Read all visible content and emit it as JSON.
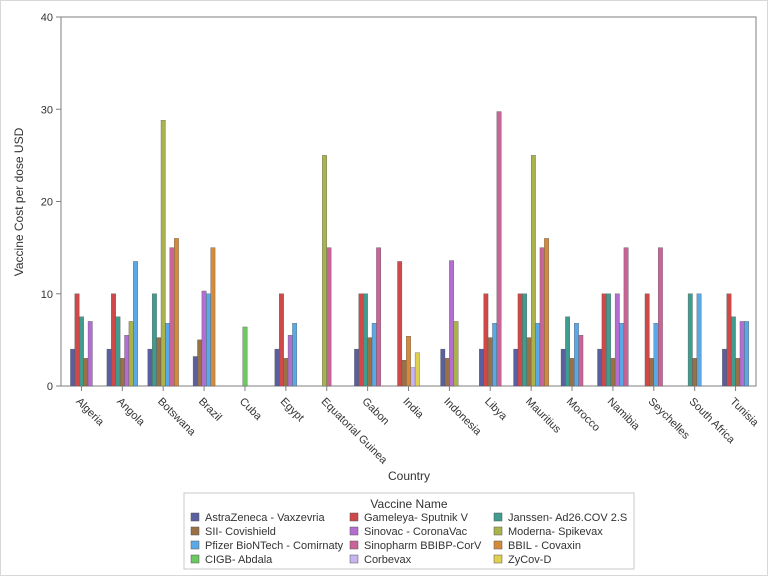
{
  "chart_data": {
    "type": "bar",
    "title": "",
    "xlabel": "Country",
    "ylabel": "Vaccine Cost per dose USD",
    "ylim": [
      0,
      40
    ],
    "yticks": [
      0,
      10,
      20,
      30,
      40
    ],
    "grid": false,
    "legend_position": "bottom",
    "legend_title": "Vaccine Name",
    "categories": [
      "Algeria",
      "Angola",
      "Botswana",
      "Brazil",
      "Cuba",
      "Egypt",
      "Equatorial Guinea",
      "Gabon",
      "India",
      "Indonesia",
      "Libya",
      "Mauritius",
      "Morocco",
      "Namibia",
      "Seychelles",
      "South Africa",
      "Tunisia"
    ],
    "series": [
      {
        "name": "AstraZeneca - Vaxzevria",
        "color": "#5a5fa0",
        "values": [
          4,
          4,
          4,
          3.2,
          null,
          4,
          null,
          4,
          null,
          4,
          4,
          4,
          4,
          4,
          null,
          null,
          4
        ]
      },
      {
        "name": "Gameleya- Sputnik V",
        "color": "#d04848",
        "values": [
          10,
          10,
          null,
          null,
          null,
          10,
          null,
          10,
          13.5,
          null,
          10,
          10,
          null,
          10,
          10,
          null,
          10
        ]
      },
      {
        "name": "Janssen- Ad26.COV 2.S",
        "color": "#3f9c8e",
        "values": [
          7.5,
          7.5,
          10,
          null,
          null,
          null,
          null,
          10,
          null,
          null,
          null,
          10,
          7.5,
          10,
          null,
          10,
          7.5
        ]
      },
      {
        "name": "SII- Covishield",
        "color": "#9a7046",
        "values": [
          3,
          3,
          5.25,
          5,
          null,
          3,
          null,
          5.25,
          2.8,
          3,
          5.25,
          5.25,
          3,
          3,
          3,
          3,
          3
        ]
      },
      {
        "name": "Sinovac - CoronaVac",
        "color": "#b46ed2",
        "values": [
          7,
          5.5,
          null,
          10.3,
          null,
          5.5,
          null,
          null,
          null,
          13.6,
          null,
          null,
          null,
          10,
          null,
          null,
          7
        ]
      },
      {
        "name": "Moderna- Spikevax",
        "color": "#a9b34a",
        "values": [
          null,
          7,
          28.8,
          null,
          null,
          null,
          25,
          null,
          null,
          7,
          null,
          25,
          null,
          null,
          null,
          null,
          null
        ]
      },
      {
        "name": "Pfizer BioNTech - Comirnaty",
        "color": "#5aa8e6",
        "values": [
          null,
          13.5,
          6.8,
          10,
          null,
          6.8,
          null,
          6.8,
          null,
          null,
          6.8,
          6.8,
          6.8,
          6.8,
          6.8,
          10,
          7
        ]
      },
      {
        "name": "Sinopharm BBIBP-CorV",
        "color": "#c86498",
        "values": [
          null,
          null,
          15,
          null,
          null,
          null,
          15,
          15,
          null,
          null,
          29.75,
          15,
          5.5,
          15,
          15,
          null,
          null
        ]
      },
      {
        "name": "BBIL - Covaxin",
        "color": "#d48a3a",
        "values": [
          null,
          null,
          16,
          15,
          null,
          null,
          null,
          null,
          5.4,
          null,
          null,
          16,
          null,
          null,
          null,
          null,
          null
        ]
      },
      {
        "name": "CIGB- Abdala",
        "color": "#6cc860",
        "values": [
          null,
          null,
          null,
          null,
          6.4,
          null,
          null,
          null,
          null,
          null,
          null,
          null,
          null,
          null,
          null,
          null,
          null
        ]
      },
      {
        "name": "Corbevax",
        "color": "#c8b4f0",
        "values": [
          null,
          null,
          null,
          null,
          null,
          null,
          null,
          null,
          2,
          null,
          null,
          null,
          null,
          null,
          null,
          null,
          null
        ]
      },
      {
        "name": "ZyCov-D",
        "color": "#e0d050",
        "values": [
          null,
          null,
          null,
          null,
          null,
          null,
          null,
          null,
          3.6,
          null,
          null,
          null,
          null,
          null,
          null,
          null,
          null
        ]
      }
    ]
  }
}
